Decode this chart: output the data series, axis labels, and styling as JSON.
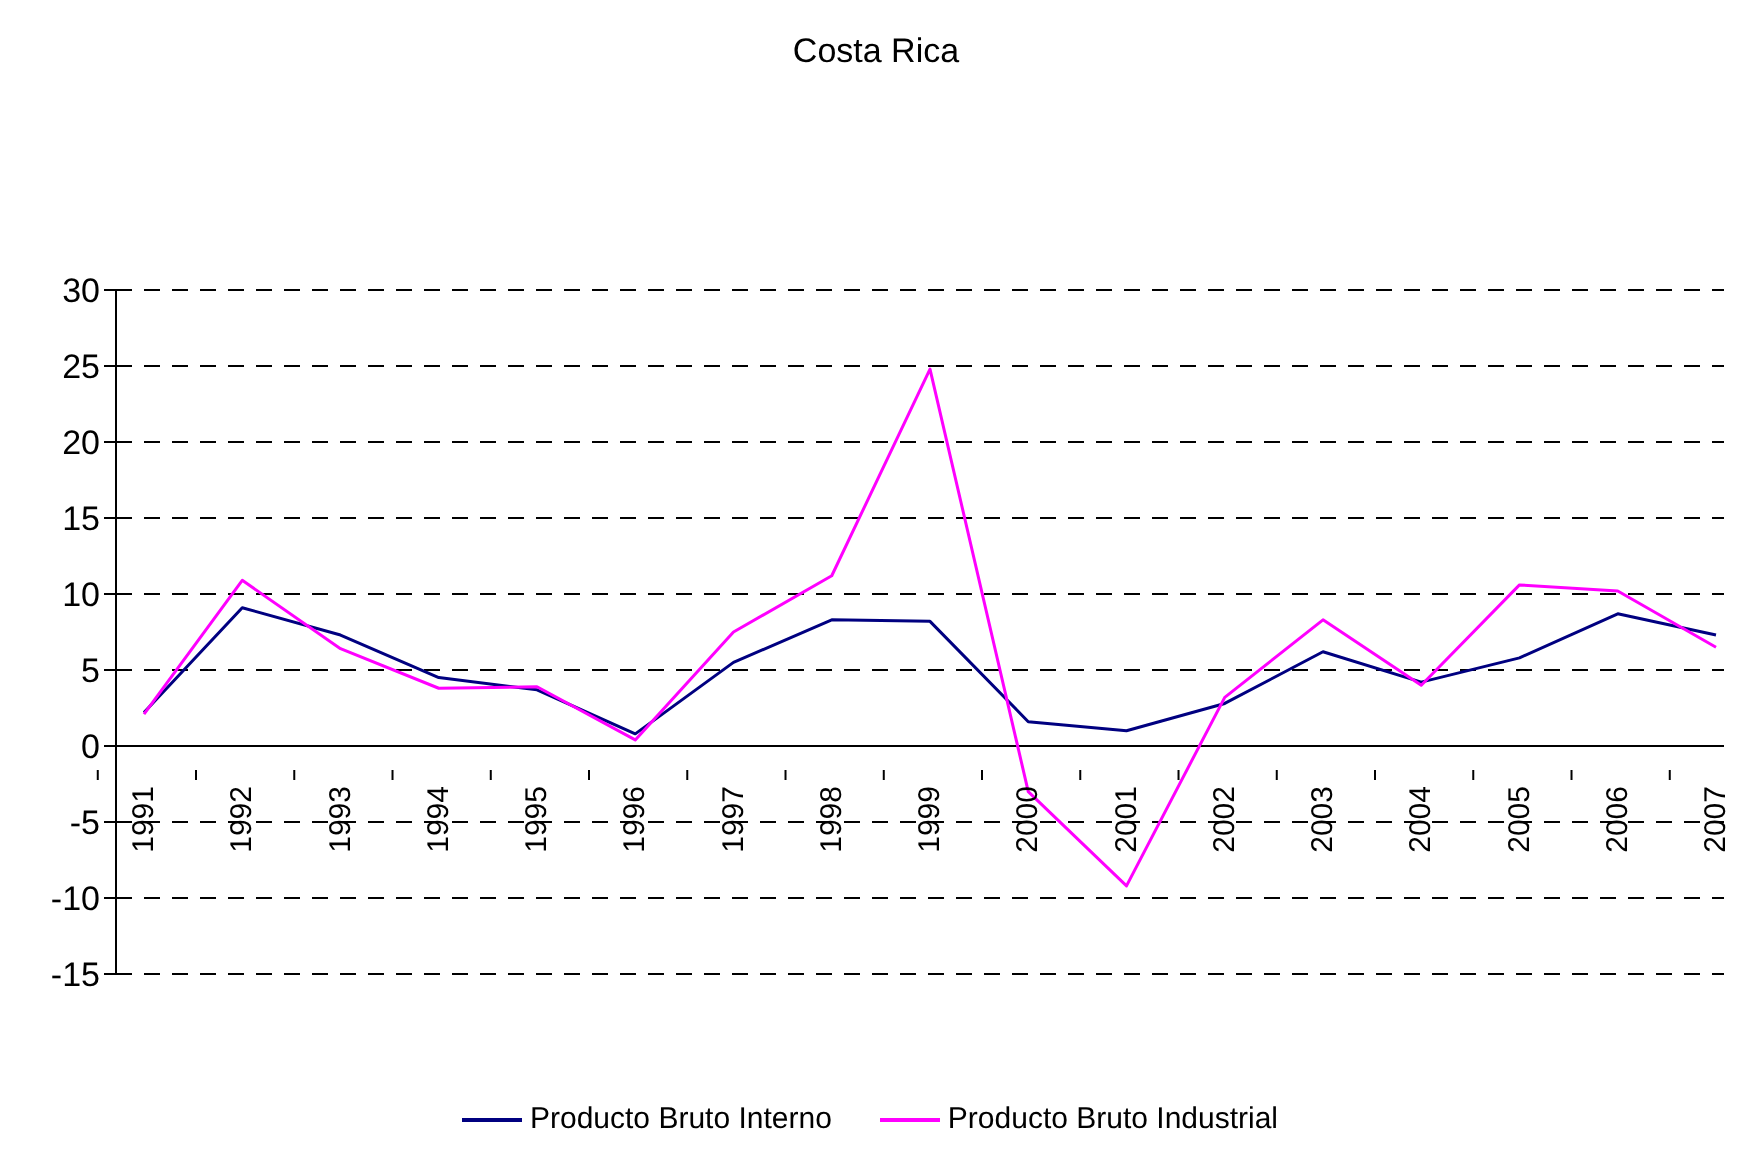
{
  "chart_data": {
    "type": "line",
    "title": "Costa Rica",
    "categories": [
      "1991",
      "1992",
      "1993",
      "1994",
      "1995",
      "1996",
      "1997",
      "1998",
      "1999",
      "2000",
      "2001",
      "2002",
      "2003",
      "2004",
      "2005",
      "2006",
      "2007"
    ],
    "series": [
      {
        "name": "Producto Bruto Interno",
        "color": "#000080",
        "values": [
          2.2,
          9.1,
          7.3,
          4.5,
          3.7,
          0.8,
          5.5,
          8.3,
          8.2,
          1.6,
          1.0,
          2.8,
          6.2,
          4.2,
          5.8,
          8.7,
          7.3
        ]
      },
      {
        "name": "Producto Bruto Industrial",
        "color": "#ff00ff",
        "values": [
          2.1,
          10.9,
          6.4,
          3.8,
          3.9,
          0.4,
          7.5,
          11.2,
          24.8,
          -3.0,
          -9.2,
          3.2,
          8.3,
          4.0,
          10.6,
          10.2,
          6.5
        ]
      }
    ],
    "ylim": [
      -15,
      30
    ],
    "yticks": [
      -15,
      -10,
      -5,
      0,
      5,
      10,
      15,
      20,
      25,
      30
    ],
    "grid": "y",
    "legend": "bottom",
    "marker": "none",
    "line_style": "solid"
  }
}
